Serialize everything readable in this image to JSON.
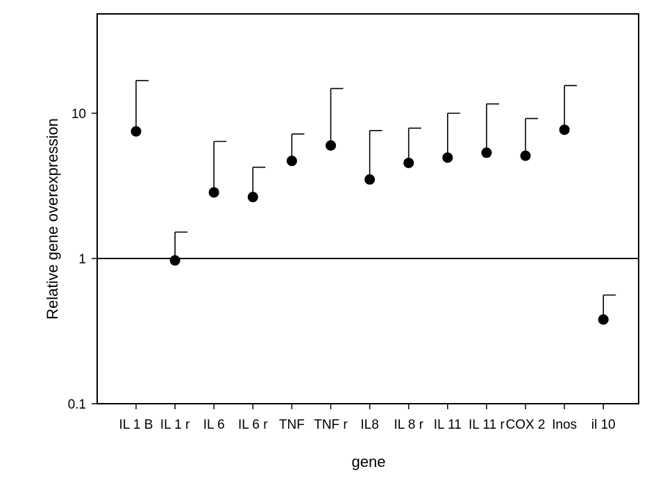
{
  "chart_data": {
    "type": "scatter",
    "title": "",
    "xlabel": "gene",
    "ylabel": "Relative gene overexpression",
    "yscale": "log",
    "ylim": [
      0.1,
      50
    ],
    "ytick_values": [
      0.1,
      1,
      10
    ],
    "ytick_labels": [
      "0.1",
      "1",
      "10"
    ],
    "reference_line": 1,
    "grid": false,
    "legend": "none",
    "categories": [
      "IL 1 B",
      "IL 1 r",
      "IL 6",
      "IL 6 r",
      "TNF",
      "TNF r",
      "IL8",
      "IL 8 r",
      "IL 11",
      "IL 11 r",
      "COX 2",
      "Inos",
      "il 10"
    ],
    "series": [
      {
        "values": [
          7.5,
          0.97,
          2.85,
          2.65,
          4.7,
          6.0,
          3.5,
          4.55,
          4.95,
          5.35,
          5.1,
          7.7,
          0.38
        ],
        "error_upper": [
          16.8,
          1.52,
          6.4,
          4.25,
          7.2,
          14.8,
          7.6,
          7.9,
          10.0,
          11.6,
          9.2,
          15.5,
          0.56
        ]
      }
    ],
    "colors": {
      "marker": "#000000",
      "axis": "#000000"
    }
  }
}
